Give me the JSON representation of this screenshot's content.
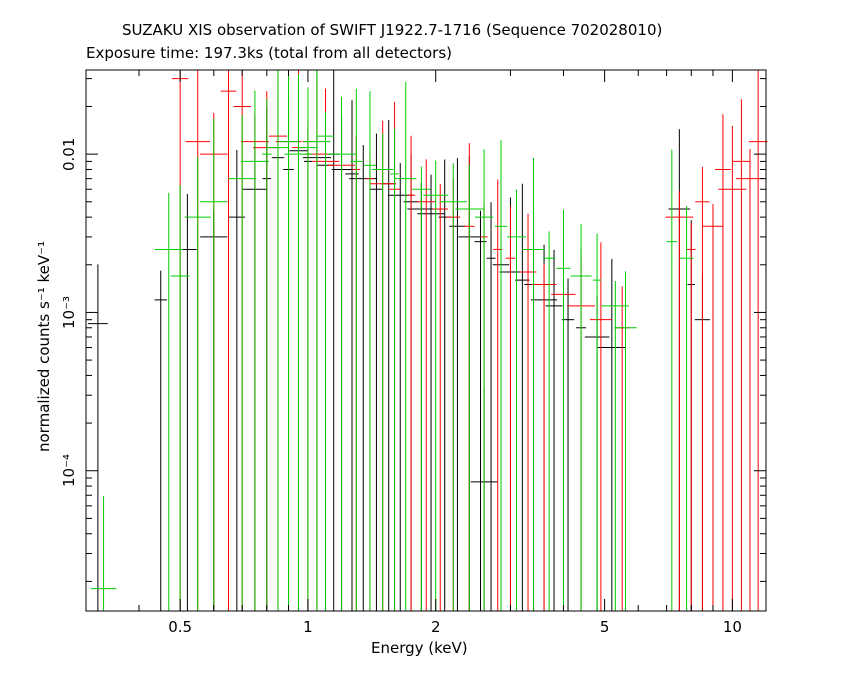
{
  "chart_data": {
    "type": "scatter",
    "title": "SUZAKU XIS observation of SWIFT J1922.7-1716 (Sequence 702028010)",
    "subtitle": "Exposure time: 197.3ks (total from all detectors)",
    "xlabel": "Energy (keV)",
    "ylabel": "normalized counts s⁻¹ keV⁻¹",
    "xscale": "log",
    "yscale": "log",
    "xlim": [
      0.3,
      12
    ],
    "ylim": [
      1.3e-05,
      0.034
    ],
    "x_tick_labels": [
      "0.5",
      "1",
      "2",
      "5",
      "10"
    ],
    "x_ticks": [
      0.5,
      1,
      2,
      5,
      10
    ],
    "y_tick_labels": [
      "10⁻⁴",
      "10⁻³",
      "0.01"
    ],
    "y_ticks": [
      0.0001,
      0.001,
      0.01
    ],
    "grid": false,
    "series": [
      {
        "color": "#000000",
        "points": [
          [
            0.32,
            0.00085
          ],
          [
            0.45,
            0.0012
          ],
          [
            0.52,
            0.0025
          ],
          [
            0.6,
            0.003
          ],
          [
            0.68,
            0.004
          ],
          [
            0.75,
            0.006
          ],
          [
            0.8,
            0.007
          ],
          [
            0.85,
            0.0095
          ],
          [
            0.9,
            0.008
          ],
          [
            0.95,
            0.0105
          ],
          [
            1.0,
            0.009
          ],
          [
            1.05,
            0.0095
          ],
          [
            1.1,
            0.0085
          ],
          [
            1.15,
            0.01
          ],
          [
            1.2,
            0.008
          ],
          [
            1.27,
            0.0075
          ],
          [
            1.35,
            0.007
          ],
          [
            1.45,
            0.006
          ],
          [
            1.55,
            0.0065
          ],
          [
            1.65,
            0.0055
          ],
          [
            1.75,
            0.005
          ],
          [
            1.85,
            0.0045
          ],
          [
            1.95,
            0.0042
          ],
          [
            2.1,
            0.004
          ],
          [
            2.25,
            0.0035
          ],
          [
            2.4,
            0.003
          ],
          [
            2.55,
            0.0028
          ],
          [
            2.7,
            0.0022
          ],
          [
            2.85,
            0.002
          ],
          [
            3.0,
            0.0018
          ],
          [
            3.2,
            0.0016
          ],
          [
            3.4,
            0.0015
          ],
          [
            3.6,
            0.0012
          ],
          [
            3.8,
            0.0011
          ],
          [
            4.1,
            0.0009
          ],
          [
            4.4,
            0.0008
          ],
          [
            4.8,
            0.0007
          ],
          [
            5.2,
            0.0006
          ],
          [
            2.6,
            8.5e-05
          ],
          [
            7.5,
            0.0045
          ],
          [
            8.0,
            0.0015
          ],
          [
            8.5,
            0.0009
          ]
        ]
      },
      {
        "color": "#ff0000",
        "points": [
          [
            0.5,
            0.03
          ],
          [
            0.55,
            0.012
          ],
          [
            0.6,
            0.01
          ],
          [
            0.65,
            0.025
          ],
          [
            0.7,
            0.02
          ],
          [
            0.75,
            0.012
          ],
          [
            0.8,
            0.011
          ],
          [
            0.85,
            0.013
          ],
          [
            0.9,
            0.012
          ],
          [
            0.95,
            0.011
          ],
          [
            1.0,
            0.012
          ],
          [
            1.05,
            0.01
          ],
          [
            1.1,
            0.009
          ],
          [
            1.2,
            0.0085
          ],
          [
            1.3,
            0.008
          ],
          [
            1.4,
            0.007
          ],
          [
            1.5,
            0.0065
          ],
          [
            1.6,
            0.006
          ],
          [
            1.75,
            0.0055
          ],
          [
            1.9,
            0.005
          ],
          [
            2.05,
            0.0045
          ],
          [
            2.2,
            0.004
          ],
          [
            2.4,
            0.0035
          ],
          [
            2.6,
            0.003
          ],
          [
            2.8,
            0.0025
          ],
          [
            3.0,
            0.0022
          ],
          [
            3.3,
            0.0018
          ],
          [
            3.6,
            0.0015
          ],
          [
            4.0,
            0.0013
          ],
          [
            4.4,
            0.0011
          ],
          [
            4.9,
            0.0009
          ],
          [
            5.5,
            0.0008
          ],
          [
            7.5,
            0.004
          ],
          [
            8.0,
            0.0025
          ],
          [
            8.5,
            0.005
          ],
          [
            9.0,
            0.0035
          ],
          [
            9.5,
            0.008
          ],
          [
            10.0,
            0.006
          ],
          [
            10.5,
            0.009
          ],
          [
            11.0,
            0.007
          ],
          [
            11.5,
            0.012
          ]
        ]
      },
      {
        "color": "#00cc00",
        "points": [
          [
            0.33,
            1.8e-05
          ],
          [
            0.47,
            0.0025
          ],
          [
            0.5,
            0.0017
          ],
          [
            0.55,
            0.004
          ],
          [
            0.6,
            0.005
          ],
          [
            0.7,
            0.007
          ],
          [
            0.75,
            0.009
          ],
          [
            0.8,
            0.01
          ],
          [
            0.85,
            0.011
          ],
          [
            0.9,
            0.012
          ],
          [
            0.95,
            0.01
          ],
          [
            1.0,
            0.011
          ],
          [
            1.05,
            0.012
          ],
          [
            1.1,
            0.013
          ],
          [
            1.2,
            0.01
          ],
          [
            1.3,
            0.009
          ],
          [
            1.4,
            0.0085
          ],
          [
            1.5,
            0.008
          ],
          [
            1.6,
            0.0075
          ],
          [
            1.7,
            0.007
          ],
          [
            1.85,
            0.006
          ],
          [
            2.0,
            0.0055
          ],
          [
            2.2,
            0.005
          ],
          [
            2.4,
            0.0045
          ],
          [
            2.6,
            0.004
          ],
          [
            2.85,
            0.0035
          ],
          [
            3.1,
            0.003
          ],
          [
            3.4,
            0.0025
          ],
          [
            3.7,
            0.0022
          ],
          [
            4.0,
            0.0019
          ],
          [
            4.4,
            0.0017
          ],
          [
            4.8,
            0.0016
          ],
          [
            5.3,
            0.0011
          ],
          [
            5.6,
            0.0008
          ],
          [
            7.2,
            0.0028
          ],
          [
            7.8,
            0.0022
          ]
        ]
      }
    ]
  }
}
